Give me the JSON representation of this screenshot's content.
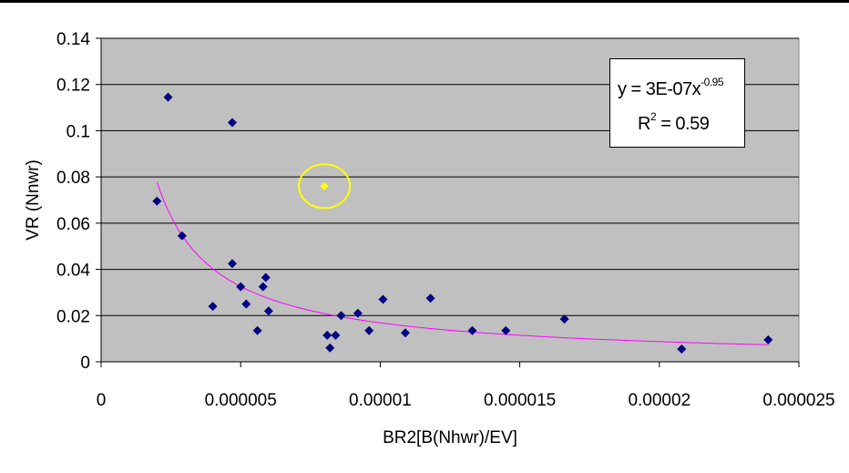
{
  "chart_data": {
    "type": "scatter",
    "title": "",
    "xlabel": "BR2[B(Nhwr)/EV]",
    "ylabel": "VR (Nnwr)",
    "xlim": [
      0,
      2.5e-05
    ],
    "ylim": [
      0,
      0.14
    ],
    "x_ticks": [
      "0",
      "0.000005",
      "0.00001",
      "0.000015",
      "0.00002",
      "0.000025"
    ],
    "y_ticks": [
      "0",
      "0.02",
      "0.04",
      "0.06",
      "0.08",
      "0.1",
      "0.12",
      "0.14"
    ],
    "grid": "horizontal",
    "plot_background": "#C0C0C0",
    "marker_color": "#000080",
    "highlight_color": "#FFFF00",
    "trendline_color": "#FF00FF",
    "series": [
      {
        "values": [
          [
            2e-06,
            0.0695
          ],
          [
            2.4e-06,
            0.1145
          ],
          [
            2.9e-06,
            0.0545
          ],
          [
            4e-06,
            0.024
          ],
          [
            4.7e-06,
            0.1035
          ],
          [
            4.7e-06,
            0.0425
          ],
          [
            5e-06,
            0.0325
          ],
          [
            5.2e-06,
            0.025
          ],
          [
            5.6e-06,
            0.0135
          ],
          [
            5.8e-06,
            0.0325
          ],
          [
            5.9e-06,
            0.0365
          ],
          [
            6e-06,
            0.022
          ],
          [
            8.1e-06,
            0.0115
          ],
          [
            8.2e-06,
            0.006
          ],
          [
            8.4e-06,
            0.0115
          ],
          [
            8.6e-06,
            0.02
          ],
          [
            9.2e-06,
            0.021
          ],
          [
            9.6e-06,
            0.0135
          ],
          [
            1.01e-05,
            0.027
          ],
          [
            1.09e-05,
            0.0125
          ],
          [
            1.18e-05,
            0.0275
          ],
          [
            1.33e-05,
            0.0135
          ],
          [
            1.45e-05,
            0.0135
          ],
          [
            1.66e-05,
            0.0185
          ],
          [
            2.08e-05,
            0.0055
          ],
          [
            2.39e-05,
            0.0095
          ]
        ]
      }
    ],
    "highlighted_point": [
      8e-06,
      0.076
    ],
    "trendline": {
      "type": "power",
      "coefficient": 3e-07,
      "exponent": -0.95,
      "x_range": [
        2e-06,
        2.39e-05
      ]
    },
    "annotation": {
      "equation_prefix": "y = 3E-07x",
      "equation_exponent": "-0.95",
      "r2_prefix": "R",
      "r2_exponent": "2",
      "r2_suffix": " = 0.59"
    }
  }
}
